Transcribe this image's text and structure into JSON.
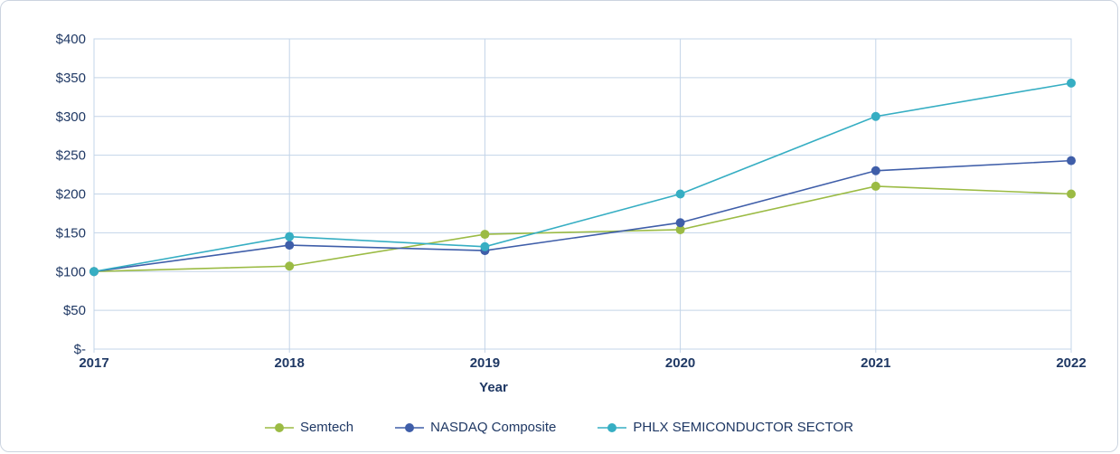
{
  "chart_data": {
    "type": "line",
    "title": "",
    "xlabel": "Year",
    "x_categories": [
      "2017",
      "2018",
      "2019",
      "2020",
      "2021",
      "2022"
    ],
    "ylim": [
      0,
      400
    ],
    "grid": true,
    "legend_position": "bottom",
    "y_ticks": [
      {
        "value": 0,
        "label": "$-"
      },
      {
        "value": 50,
        "label": "$50"
      },
      {
        "value": 100,
        "label": "$100"
      },
      {
        "value": 150,
        "label": "$150"
      },
      {
        "value": 200,
        "label": "$200"
      },
      {
        "value": 250,
        "label": "$250"
      },
      {
        "value": 300,
        "label": "$300"
      },
      {
        "value": 350,
        "label": "$350"
      },
      {
        "value": 400,
        "label": "$400"
      }
    ],
    "series": [
      {
        "name": "Semtech",
        "color": "#9BBB44",
        "values": [
          100,
          107,
          148,
          154,
          210,
          200
        ]
      },
      {
        "name": "NASDAQ Composite",
        "color": "#3F5EA9",
        "values": [
          100,
          134,
          127,
          163,
          230,
          243
        ]
      },
      {
        "name": "PHLX SEMICONDUCTOR SECTOR",
        "color": "#36AEC3",
        "values": [
          100,
          145,
          132,
          200,
          300,
          343
        ]
      }
    ],
    "colors": {
      "grid": "#c3d4e8",
      "plot_border": "#c3d4e8",
      "axis_text": "#1f3864"
    }
  }
}
